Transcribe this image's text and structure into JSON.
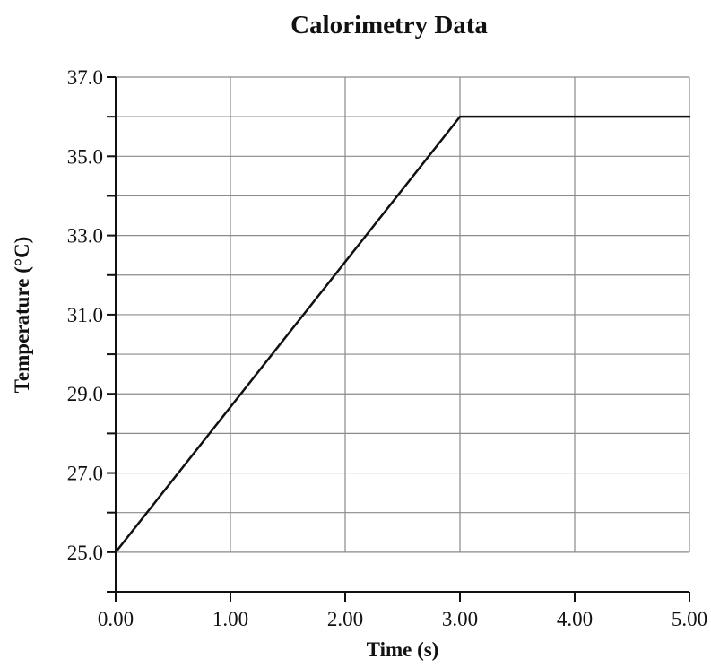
{
  "chart_data": {
    "type": "line",
    "title": "Calorimetry Data",
    "xlabel": "Time (s)",
    "ylabel": "Temperature (°C)",
    "xlim": [
      0,
      5
    ],
    "ylim": [
      24,
      37
    ],
    "x_ticks": [
      0,
      1,
      2,
      3,
      4,
      5
    ],
    "x_tick_labels": [
      "0.00",
      "1.00",
      "2.00",
      "3.00",
      "4.00",
      "5.00"
    ],
    "y_ticks": [
      25,
      27,
      29,
      31,
      33,
      35,
      37
    ],
    "y_tick_labels": [
      "25.0",
      "27.0",
      "29.0",
      "31.0",
      "33.0",
      "35.0",
      "37.0"
    ],
    "y_minor_ticks": [
      24,
      26,
      28,
      30,
      32,
      34,
      36
    ],
    "grid": true,
    "series": [
      {
        "x": [
          0,
          3,
          5
        ],
        "y": [
          25,
          36,
          36
        ]
      }
    ],
    "colors": {
      "line": "#111111",
      "grid": "#8a8a8a",
      "axis": "#111111"
    }
  }
}
